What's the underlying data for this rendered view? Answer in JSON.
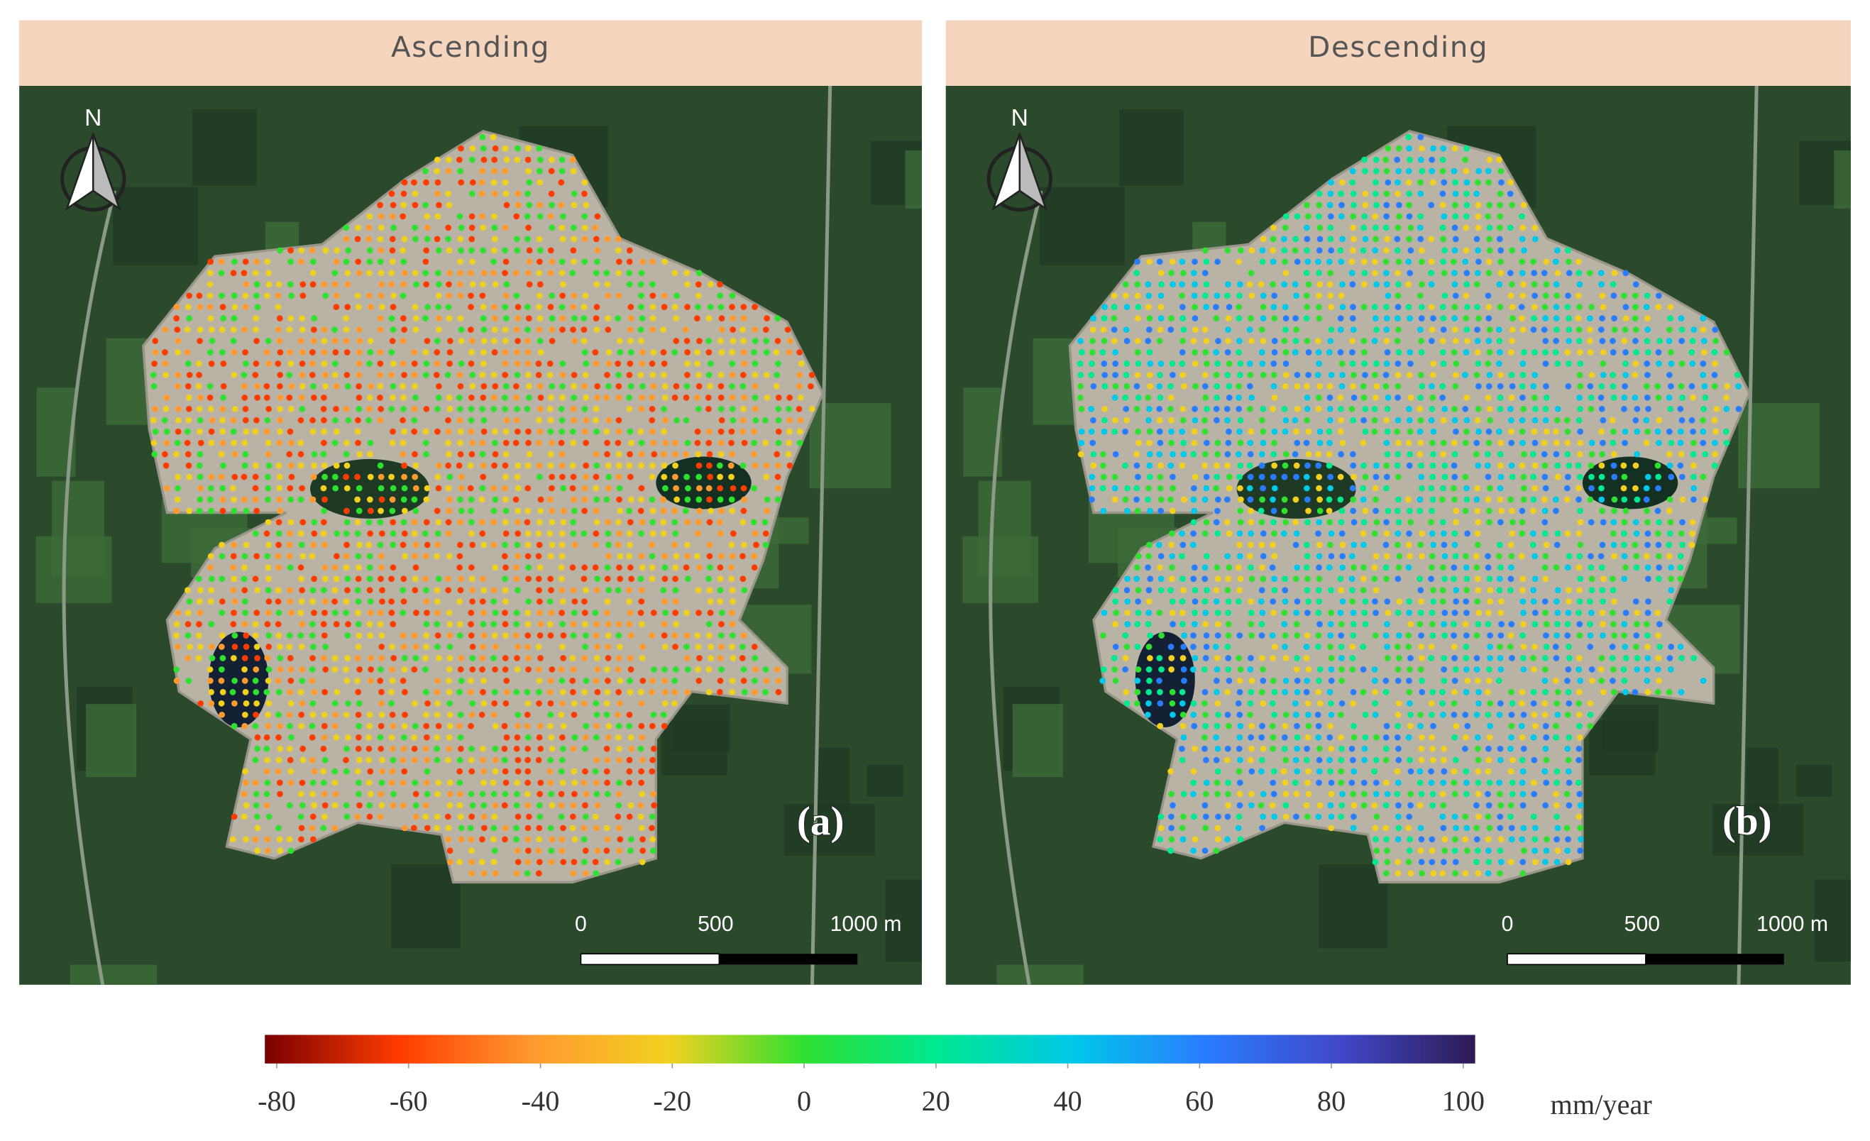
{
  "panels": [
    {
      "title": "Ascending",
      "label": "(a)",
      "north": "N",
      "scale_bar": [
        "0",
        "500",
        "1000 m"
      ]
    },
    {
      "title": "Descending",
      "label": "(b)",
      "north": "N",
      "scale_bar": [
        "0",
        "500",
        "1000 m"
      ]
    }
  ],
  "colorbar": {
    "lim": [
      -80,
      100
    ],
    "ticks": [
      -80,
      -60,
      -40,
      -20,
      0,
      20,
      40,
      60,
      80,
      100
    ],
    "unit": "mm/year",
    "colors": [
      "#7a0000",
      "#ff3c00",
      "#ff9a30",
      "#f2d020",
      "#30e030",
      "#00e890",
      "#00c8e8",
      "#2a7cff",
      "#4048c8",
      "#2e1a55"
    ]
  }
}
